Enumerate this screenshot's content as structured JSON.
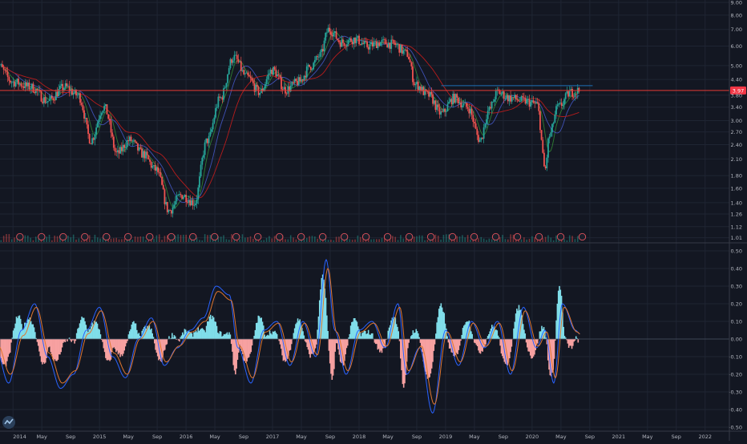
{
  "colors": {
    "background": "#131722",
    "grid": "#1f2533",
    "axis_text": "#b2b5be",
    "candle_up": "#26a69a",
    "candle_down": "#ef5350",
    "ma_fast": "#2e7d32",
    "ma_mid": "#3f51b5",
    "ma_slow": "#b71c1c",
    "resistance_line": "#1e6fb5",
    "price_line": "#e53935",
    "price_badge": "#f23645",
    "osc_line_1": "#2962ff",
    "osc_line_2": "#e0762e",
    "hist_up": "#80deea",
    "hist_down": "#f7a1a1",
    "earnings_marker": "#e0525c"
  },
  "icons": {
    "logo": "tradingview-logo-icon",
    "earnings": "earnings-e-icon"
  },
  "chart_data": [
    {
      "type": "candlestick",
      "title": "",
      "scale": "log",
      "y_axis_ticks": [
        "9.00",
        "8.00",
        "7.00",
        "6.00",
        "5.00",
        "4.40",
        "3.80",
        "3.40",
        "3.00",
        "2.70",
        "2.40",
        "2.10",
        "1.80",
        "1.60",
        "1.40",
        "1.26",
        "1.12",
        "1.01"
      ],
      "ylim": [
        1.0,
        9.0
      ],
      "x_axis_labels": [
        "2014",
        "May",
        "Sep",
        "2015",
        "May",
        "Sep",
        "2016",
        "May",
        "Sep",
        "2017",
        "May",
        "Sep",
        "2018",
        "May",
        "Sep",
        "2019",
        "May",
        "Sep",
        "2020",
        "May",
        "Sep",
        "2021",
        "May",
        "Sep",
        "2022"
      ],
      "last_price_label": "3.97",
      "last_price": 3.97,
      "resistance_level": 4.15,
      "x": [
        2013.8,
        2014.0,
        2014.2,
        2014.4,
        2014.6,
        2014.75,
        2014.9,
        2015.05,
        2015.2,
        2015.35,
        2015.5,
        2015.65,
        2015.8,
        2015.95,
        2016.1,
        2016.25,
        2016.4,
        2016.55,
        2016.7,
        2016.85,
        2017.0,
        2017.15,
        2017.3,
        2017.45,
        2017.55,
        2017.65,
        2017.8,
        2017.95,
        2018.1,
        2018.25,
        2018.4,
        2018.55,
        2018.65,
        2018.8,
        2018.95,
        2019.1,
        2019.25,
        2019.4,
        2019.5,
        2019.6,
        2019.75,
        2019.9,
        2020.05,
        2020.15,
        2020.2,
        2020.3,
        2020.45,
        2020.55
      ],
      "y": [
        5.1,
        4.3,
        4.1,
        3.6,
        4.1,
        3.8,
        2.5,
        3.4,
        2.2,
        2.5,
        2.2,
        1.9,
        1.3,
        1.5,
        1.4,
        2.5,
        3.7,
        5.4,
        4.5,
        3.9,
        4.8,
        4.0,
        4.3,
        5.0,
        5.5,
        7.0,
        6.2,
        6.4,
        6.0,
        6.2,
        6.1,
        5.6,
        4.2,
        3.8,
        3.2,
        3.7,
        3.4,
        2.5,
        3.3,
        3.9,
        3.7,
        3.6,
        3.5,
        1.9,
        2.6,
        3.4,
        3.9,
        3.97
      ],
      "earnings_count": 27
    },
    {
      "type": "line",
      "title": "",
      "y_axis_ticks": [
        "0.50",
        "0.40",
        "0.30",
        "0.20",
        "0.10",
        "0.00",
        "-0.10",
        "-0.20",
        "-0.30",
        "-0.40",
        "-0.50"
      ],
      "ylim": [
        -0.5,
        0.5
      ],
      "x": [
        2013.8,
        2013.95,
        2014.1,
        2014.25,
        2014.4,
        2014.55,
        2014.7,
        2014.85,
        2015.0,
        2015.15,
        2015.3,
        2015.45,
        2015.6,
        2015.75,
        2015.9,
        2016.05,
        2016.2,
        2016.35,
        2016.5,
        2016.6,
        2016.75,
        2016.9,
        2017.05,
        2017.2,
        2017.35,
        2017.5,
        2017.62,
        2017.72,
        2017.85,
        2018.0,
        2018.15,
        2018.3,
        2018.45,
        2018.55,
        2018.7,
        2018.85,
        2019.0,
        2019.15,
        2019.3,
        2019.45,
        2019.6,
        2019.75,
        2019.9,
        2020.05,
        2020.15,
        2020.25,
        2020.35,
        2020.5,
        2020.55
      ],
      "series": [
        {
          "values": [
            -0.05,
            -0.25,
            0.05,
            0.2,
            -0.1,
            -0.28,
            -0.2,
            0.05,
            0.18,
            -0.1,
            -0.22,
            0.0,
            0.12,
            -0.15,
            -0.05,
            0.05,
            0.12,
            0.3,
            0.25,
            -0.05,
            -0.25,
            0.05,
            0.1,
            -0.15,
            0.1,
            -0.1,
            0.45,
            0.05,
            -0.2,
            0.05,
            0.1,
            -0.05,
            0.2,
            -0.2,
            -0.05,
            -0.42,
            0.05,
            -0.15,
            0.1,
            -0.05,
            0.1,
            -0.2,
            0.18,
            -0.05,
            0.05,
            -0.25,
            0.2,
            0.05,
            0.03
          ]
        },
        {
          "values": [
            -0.03,
            -0.2,
            0.02,
            0.18,
            -0.08,
            -0.25,
            -0.18,
            0.03,
            0.16,
            -0.08,
            -0.2,
            0.0,
            0.1,
            -0.13,
            -0.04,
            0.04,
            0.1,
            0.27,
            0.22,
            -0.04,
            -0.22,
            0.04,
            0.09,
            -0.13,
            0.09,
            -0.09,
            0.4,
            0.04,
            -0.18,
            0.04,
            0.09,
            -0.04,
            0.18,
            -0.18,
            -0.04,
            -0.37,
            0.04,
            -0.13,
            0.09,
            -0.04,
            0.09,
            -0.18,
            0.16,
            -0.04,
            0.04,
            -0.22,
            0.18,
            0.04,
            0.02
          ]
        }
      ]
    }
  ]
}
